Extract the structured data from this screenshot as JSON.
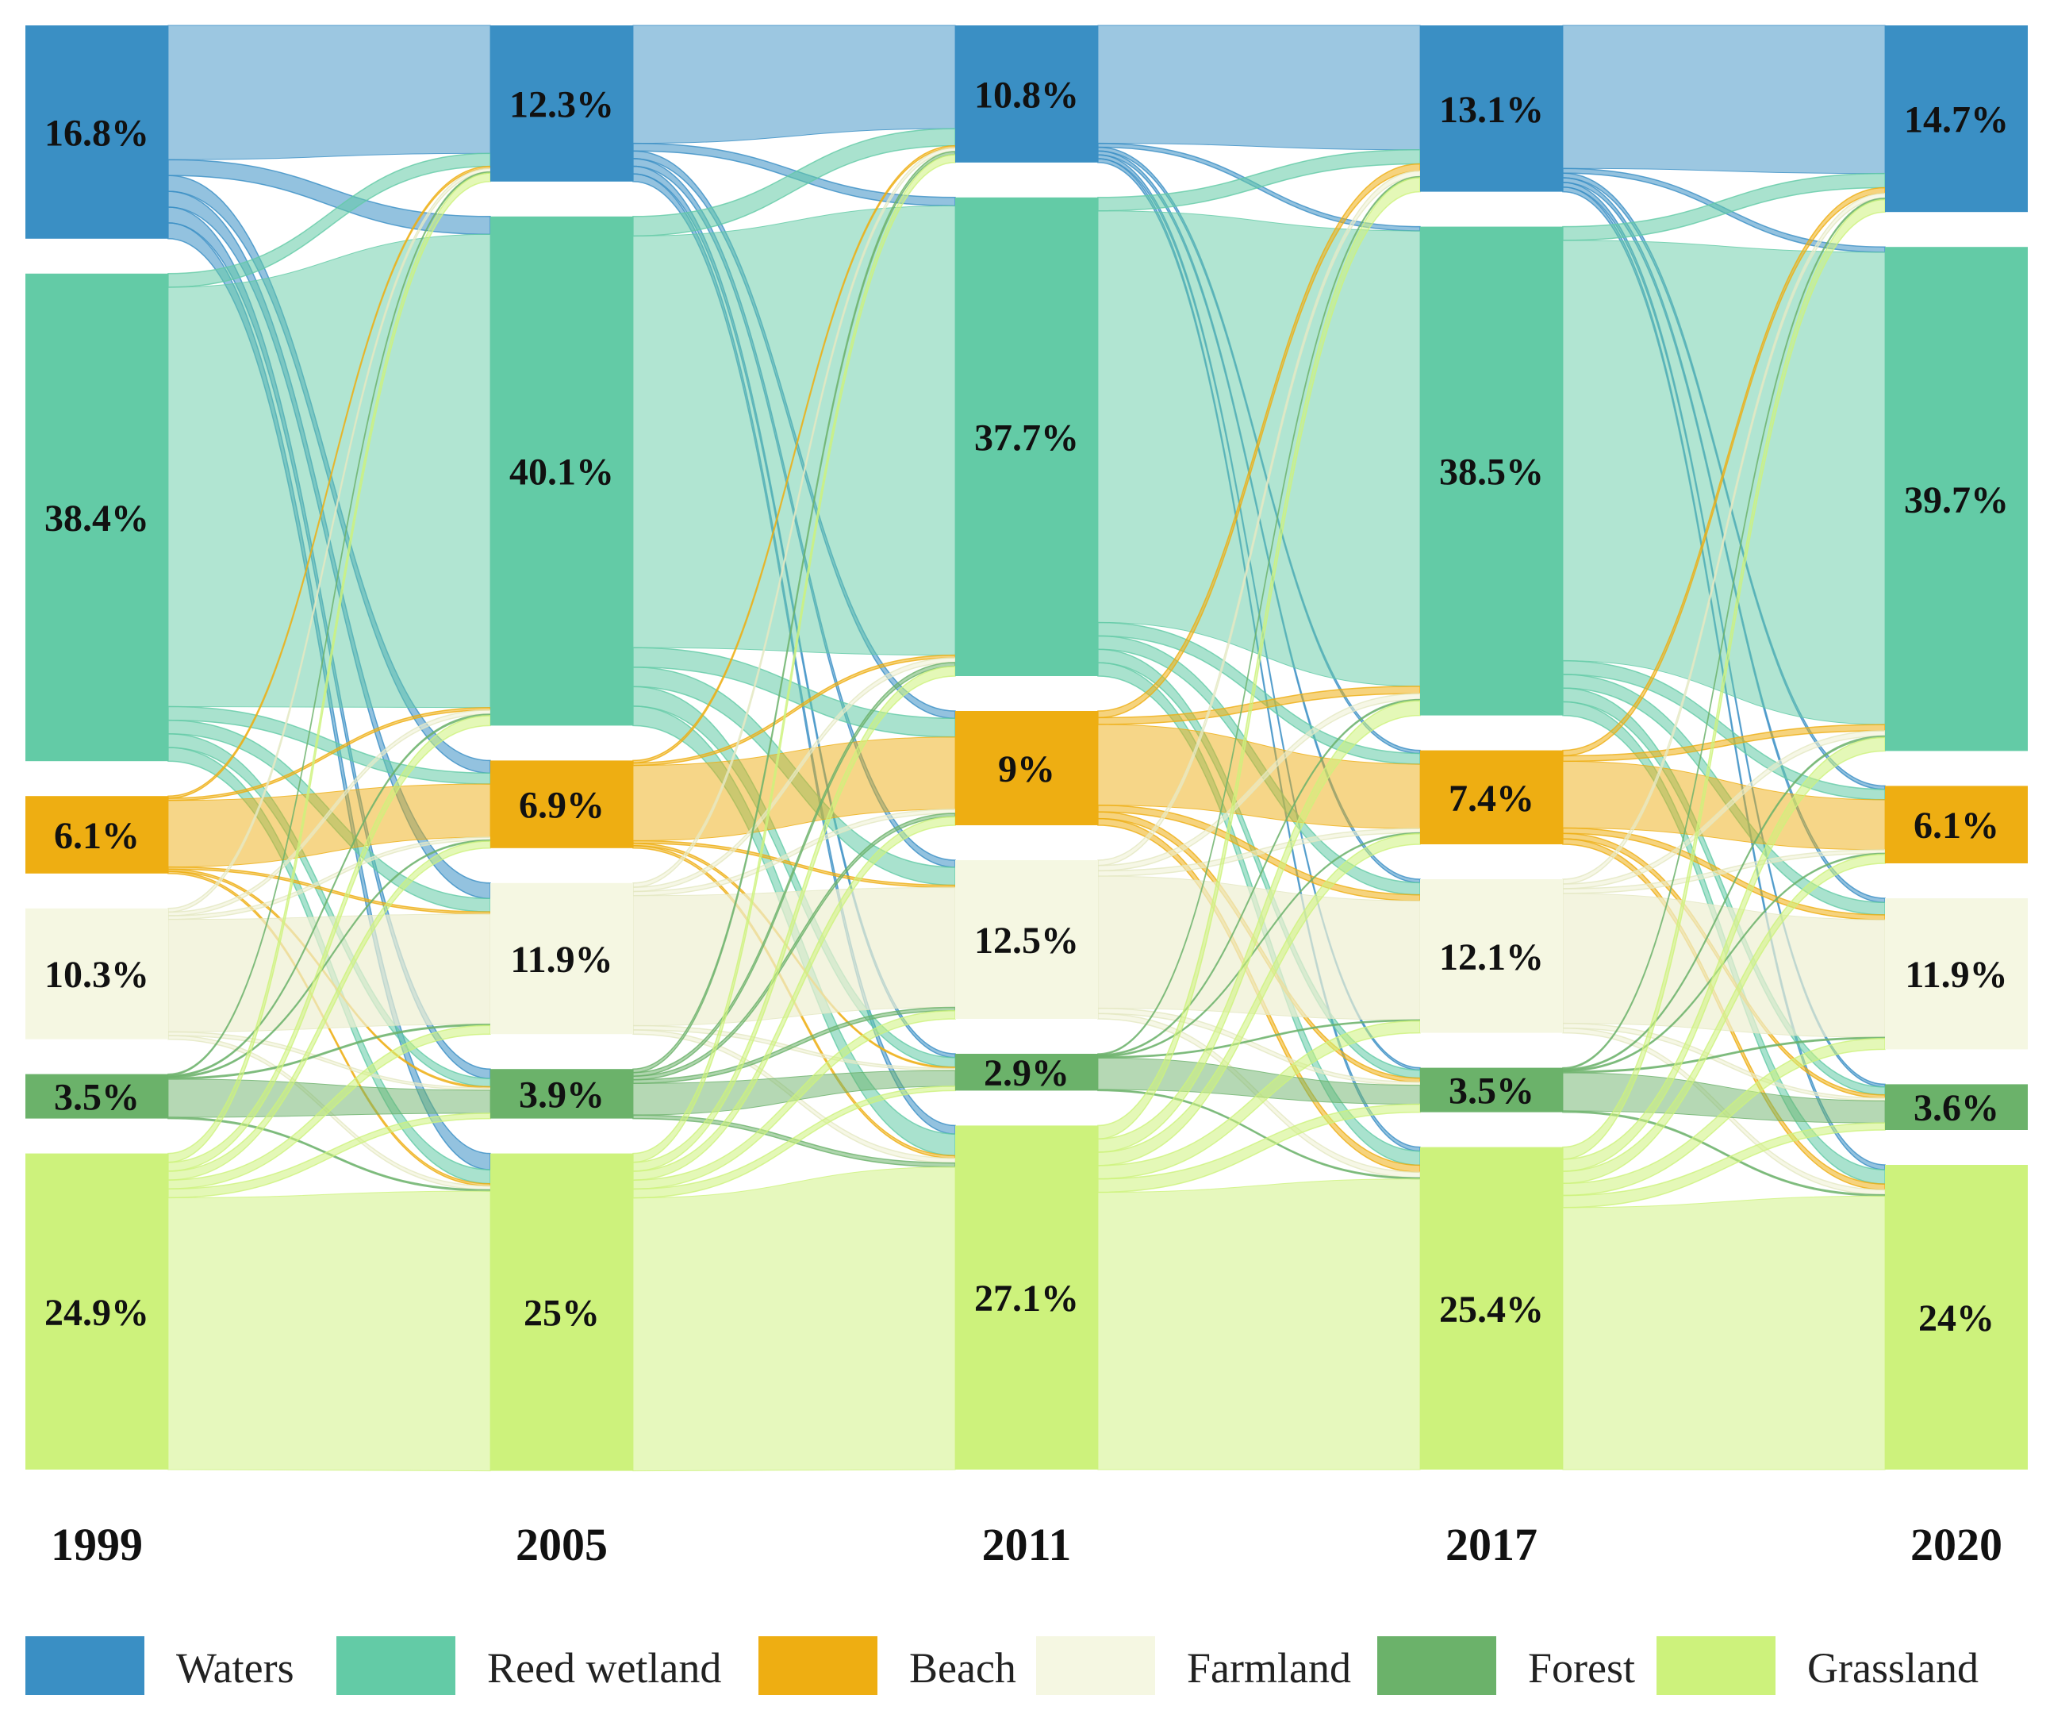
{
  "chart_data": {
    "type": "sankey",
    "title": "",
    "years": [
      "1999",
      "2005",
      "2011",
      "2017",
      "2020"
    ],
    "categories": [
      {
        "key": "waters",
        "name": "Waters",
        "color": "#3a8fc4"
      },
      {
        "key": "reed",
        "name": "Reed wetland",
        "color": "#63cba6"
      },
      {
        "key": "beach",
        "name": "Beach",
        "color": "#eeae12"
      },
      {
        "key": "farmland",
        "name": "Farmland",
        "color": "#f5f7e2"
      },
      {
        "key": "forest",
        "name": "Forest",
        "color": "#6bb26a"
      },
      {
        "key": "grassland",
        "name": "Grassland",
        "color": "#cdf27c"
      }
    ],
    "values": {
      "waters": [
        16.8,
        12.3,
        10.8,
        13.1,
        14.7
      ],
      "reed": [
        38.4,
        40.1,
        37.7,
        38.5,
        39.7
      ],
      "beach": [
        6.1,
        6.9,
        9.0,
        7.4,
        6.1
      ],
      "farmland": [
        10.3,
        11.9,
        12.5,
        12.1,
        11.9
      ],
      "forest": [
        3.5,
        3.9,
        2.9,
        3.5,
        3.6
      ],
      "grassland": [
        24.9,
        25.0,
        27.1,
        25.4,
        24.0
      ]
    },
    "labels": {
      "waters": [
        "16.8%",
        "12.3%",
        "10.8%",
        "13.1%",
        "14.7%"
      ],
      "reed": [
        "38.4%",
        "40.1%",
        "37.7%",
        "38.5%",
        "39.7%"
      ],
      "beach": [
        "6.1%",
        "6.9%",
        "9%",
        "7.4%",
        "6.1%"
      ],
      "farmland": [
        "10.3%",
        "11.9%",
        "12.5%",
        "12.1%",
        "11.9%"
      ],
      "forest": [
        "3.5%",
        "3.9%",
        "2.9%",
        "3.5%",
        "3.6%"
      ],
      "grassland": [
        "24.9%",
        "25%",
        "27.1%",
        "25.4%",
        "24%"
      ]
    },
    "legend_position": "bottom"
  }
}
